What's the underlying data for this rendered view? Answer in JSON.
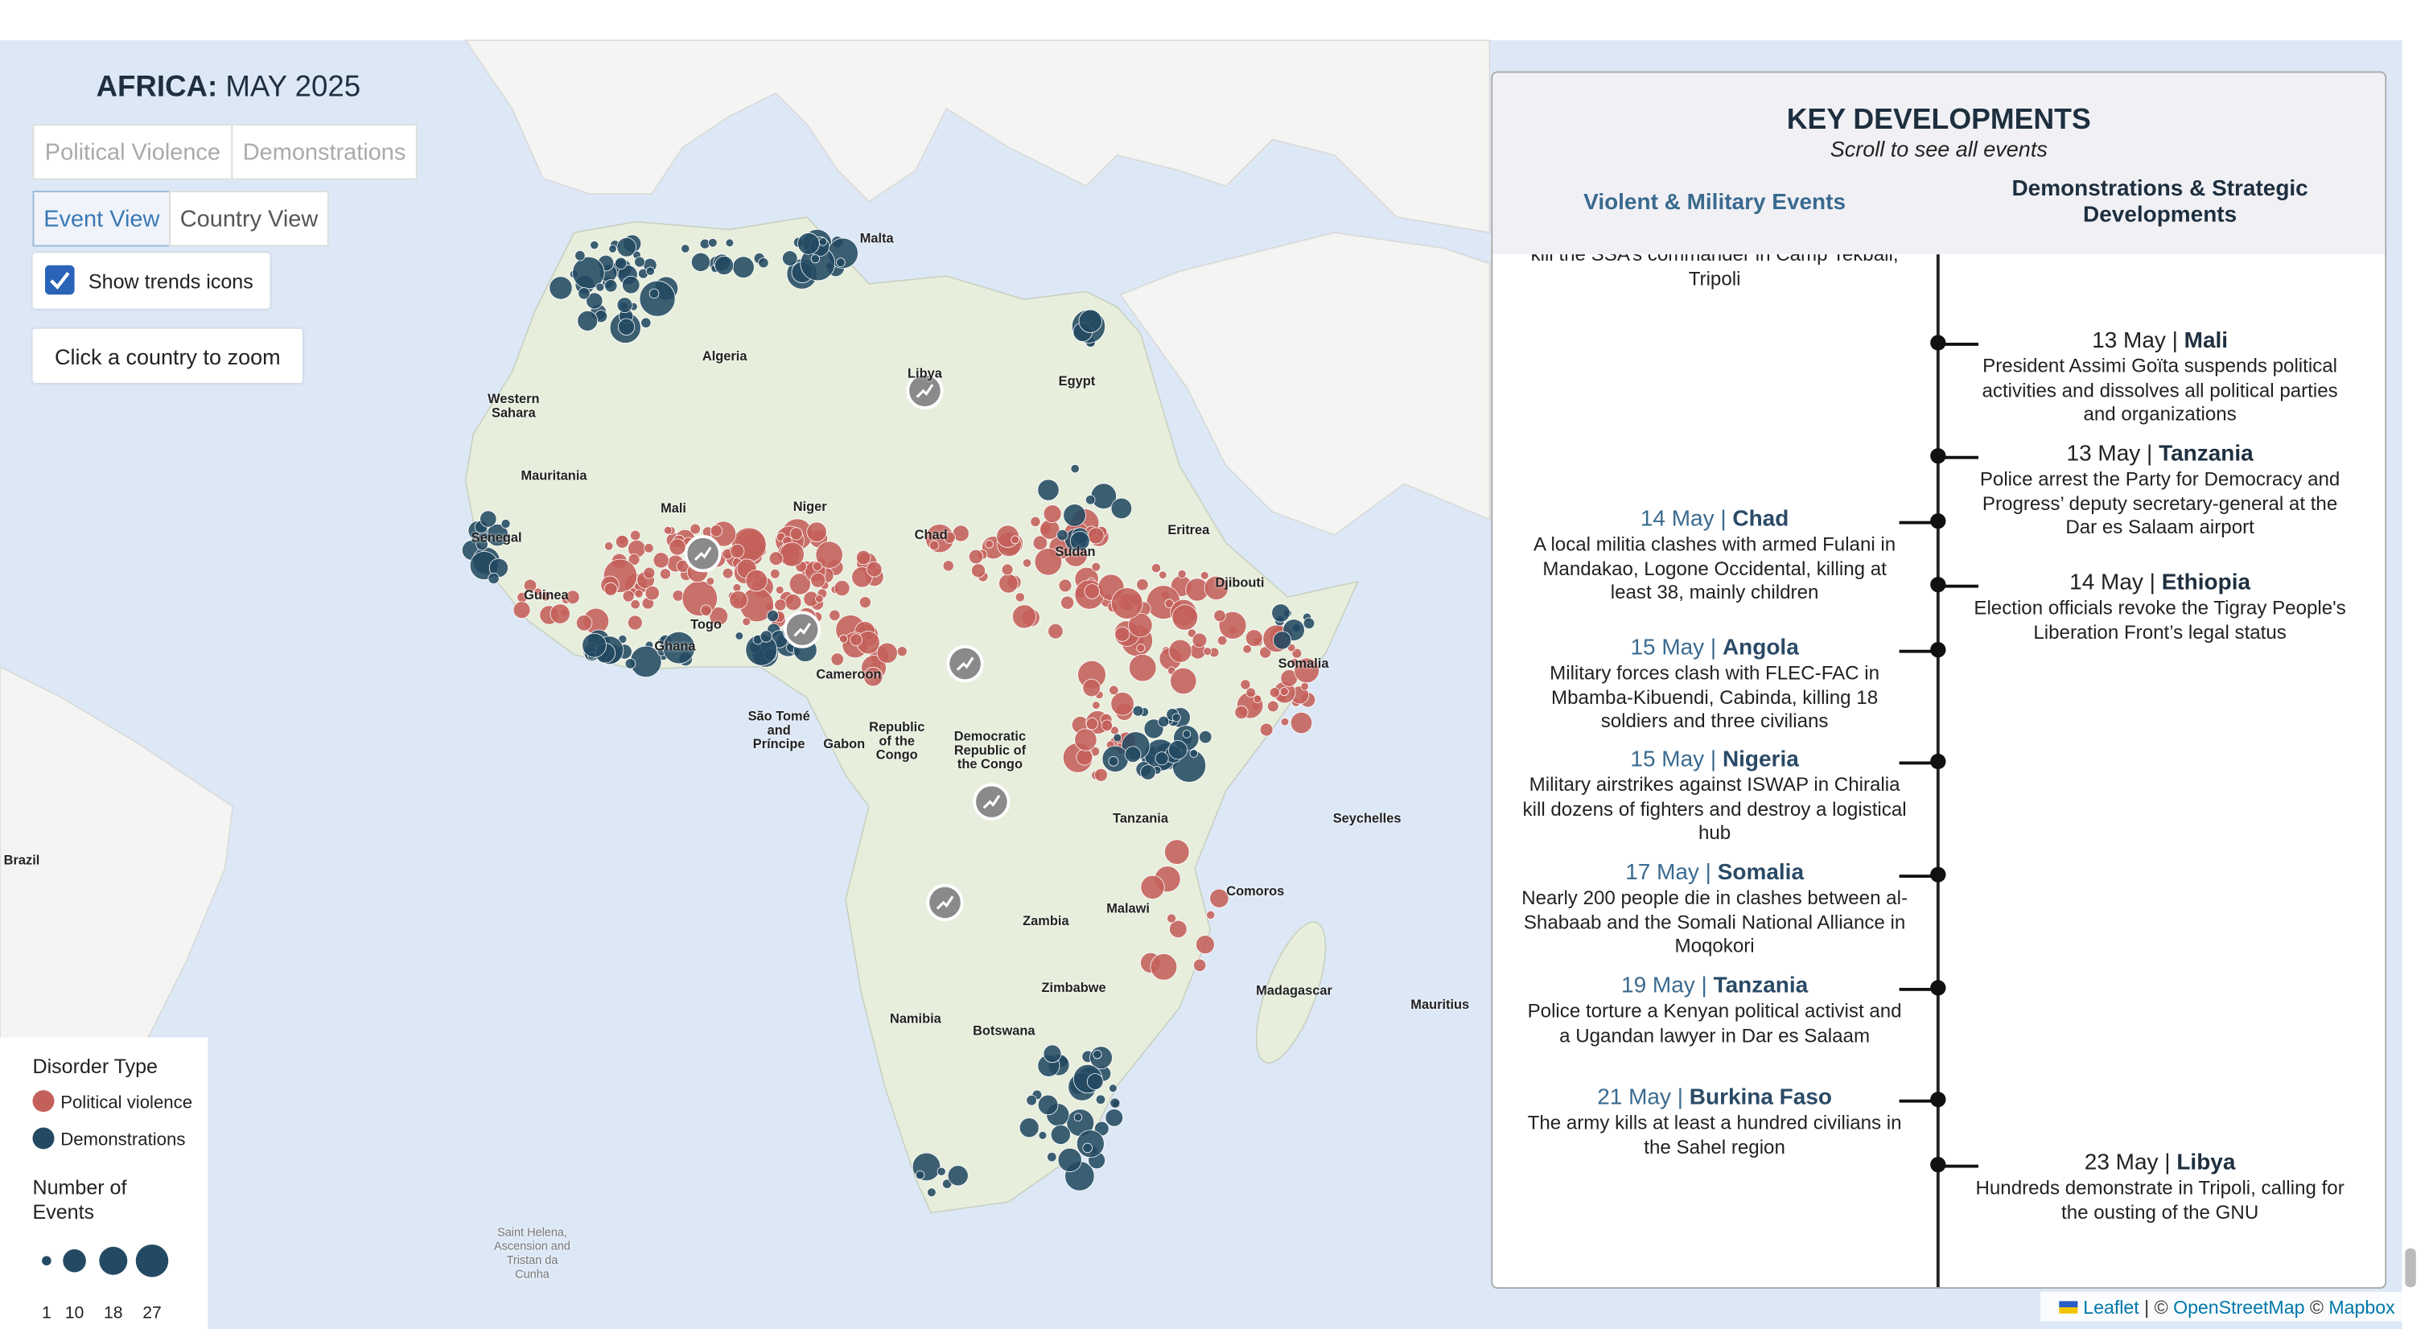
{
  "header": {
    "title_bold": "AFRICA:",
    "title_rest": "MAY 2025"
  },
  "disorder_tabs": [
    "Political Violence",
    "Demonstrations"
  ],
  "view_tabs": [
    "Event View",
    "Country View"
  ],
  "trends_toggle": "Show trends icons",
  "zoom_hint": "Click a country to zoom",
  "legend": {
    "disorder_title": "Disorder Type",
    "items": [
      {
        "label": "Political violence",
        "color": "#c4605a"
      },
      {
        "label": "Demonstrations",
        "color": "#234a62"
      }
    ],
    "size_title": "Number of Events",
    "sizes": [
      1,
      10,
      18,
      27
    ]
  },
  "panel": {
    "title": "KEY DEVELOPMENTS",
    "subtitle": "Scroll to see all events",
    "columns": [
      "Violent & Military Events",
      "Demonstrations & Strategic Developments"
    ],
    "partial_text": "kill the SSA’s commander in Camp Tekbali, Tripoli",
    "events": [
      {
        "side": "right",
        "date": "13 May |",
        "country": "Mali",
        "text": "President Assimi Goïta suspends political activities and dissolves all political parties and organizations"
      },
      {
        "side": "right",
        "date": "13 May |",
        "country": "Tanzania",
        "text": "Police arrest the Party for Democracy and Progress’ deputy secretary-general at the Dar es Salaam airport"
      },
      {
        "side": "left",
        "date": "14 May |",
        "country": "Chad",
        "text": "A local militia clashes with armed Fulani in Mandakao, Logone Occidental, killing at least 38, mainly children"
      },
      {
        "side": "right",
        "date": "14 May |",
        "country": "Ethiopia",
        "text": "Election officials revoke the Tigray People's Liberation Front’s legal status"
      },
      {
        "side": "left",
        "date": "15 May |",
        "country": "Angola",
        "text": "Military forces clash with FLEC-FAC in Mbamba-Kibuendi, Cabinda, killing 18 soldiers and three civilians"
      },
      {
        "side": "left",
        "date": "15 May |",
        "country": "Nigeria",
        "text": "Military airstrikes against ISWAP in Chiralia kill dozens of fighters and destroy a logistical hub"
      },
      {
        "side": "left",
        "date": "17 May |",
        "country": "Somalia",
        "text": "Nearly 200 people die in clashes between al-Shabaab and the Somali National Alliance in Moqokori"
      },
      {
        "side": "left",
        "date": "19 May |",
        "country": "Tanzania",
        "text": "Police torture a Kenyan political activist and a Ugandan lawyer in Dar es Salaam"
      },
      {
        "side": "left",
        "date": "21 May |",
        "country": "Burkina Faso",
        "text": "The army kills at least a hundred civilians in the Sahel region"
      },
      {
        "side": "right",
        "date": "23 May |",
        "country": "Libya",
        "text": "Hundreds demonstrate in Tripoli, calling for the ousting of the GNU"
      }
    ]
  },
  "map_labels": [
    "Malta",
    "Algeria",
    "Libya",
    "Egypt",
    "Western Sahara",
    "Mauritania",
    "Mali",
    "Niger",
    "Chad",
    "Sudan",
    "Eritrea",
    "Djibouti",
    "Senegal",
    "Guinea",
    "Ghana",
    "Togo",
    "Cameroon",
    "Somalia",
    "São Tomé and Príncipe",
    "Gabon",
    "Republic of the Congo",
    "Democratic Republic of the Congo",
    "Tanzania",
    "Malawi",
    "Zambia",
    "Zimbabwe",
    "Namibia",
    "Botswana",
    "Madagascar",
    "Comoros",
    "Seychelles",
    "Mauritius",
    "Brazil",
    "Saint Helena, Ascension and Tristan da Cunha"
  ],
  "attribution": [
    "Leaflet",
    " | © ",
    "OpenStreetMap",
    " © ",
    "Mapbox"
  ]
}
